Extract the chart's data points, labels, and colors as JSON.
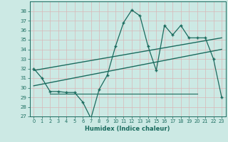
{
  "title": "",
  "xlabel": "Humidex (Indice chaleur)",
  "bg_color": "#cce9e4",
  "line_color": "#1a6b5e",
  "grid_color": "#b8ddd8",
  "ylim": [
    27,
    39
  ],
  "xlim": [
    -0.5,
    23.5
  ],
  "yticks": [
    27,
    28,
    29,
    30,
    31,
    32,
    33,
    34,
    35,
    36,
    37,
    38
  ],
  "xticks": [
    0,
    1,
    2,
    3,
    4,
    5,
    6,
    7,
    8,
    9,
    10,
    11,
    12,
    13,
    14,
    15,
    16,
    17,
    18,
    19,
    20,
    21,
    22,
    23
  ],
  "main_series_x": [
    0,
    1,
    2,
    3,
    4,
    5,
    6,
    7,
    8,
    9,
    10,
    11,
    12,
    13,
    14,
    15,
    16,
    17,
    18,
    19,
    20,
    21,
    22,
    23
  ],
  "main_series_y": [
    32.0,
    31.0,
    29.6,
    29.6,
    29.5,
    29.5,
    28.5,
    26.8,
    29.8,
    31.3,
    34.3,
    36.8,
    38.1,
    37.5,
    34.3,
    31.8,
    36.5,
    35.5,
    36.5,
    35.2,
    35.2,
    35.2,
    33.0,
    29.0
  ],
  "trend_line1_x": [
    0,
    23
  ],
  "trend_line1_y": [
    31.8,
    35.2
  ],
  "trend_line2_x": [
    0,
    23
  ],
  "trend_line2_y": [
    30.2,
    34.0
  ],
  "flat_line_x": [
    2,
    20
  ],
  "flat_line_y": [
    29.4,
    29.4
  ]
}
